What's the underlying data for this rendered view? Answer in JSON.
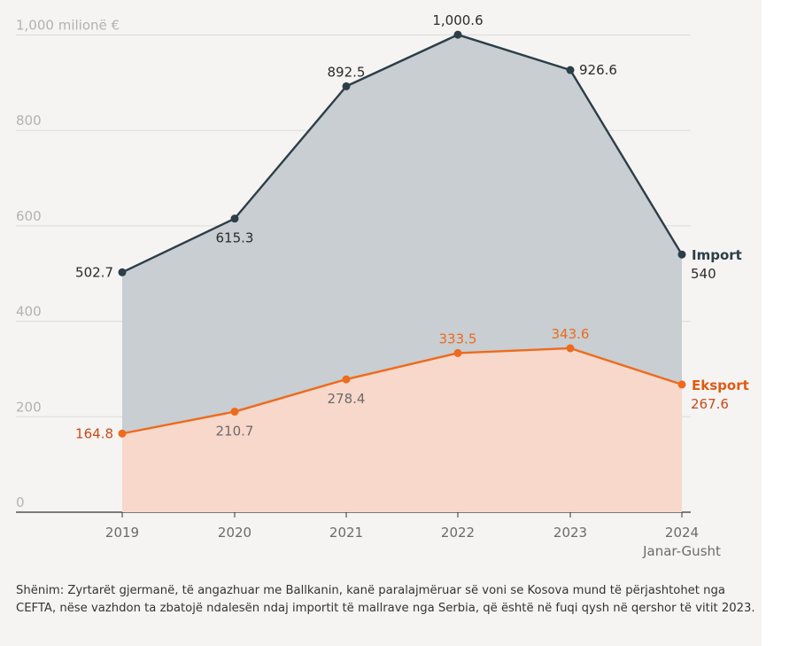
{
  "chart_data": {
    "type": "area",
    "categories": [
      "2019",
      "2020",
      "2021",
      "2022",
      "2023",
      "2024"
    ],
    "category_sublabels": [
      "",
      "",
      "",
      "",
      "",
      "Janar-Gusht"
    ],
    "ylim": [
      0,
      1000
    ],
    "yticks": [
      0,
      200,
      400,
      600,
      800,
      1000
    ],
    "ytick_labels": [
      "0",
      "200",
      "400",
      "600",
      "800",
      "1,000 milionë €"
    ],
    "grid": true,
    "series": [
      {
        "name": "Import",
        "values": [
          502.7,
          615.3,
          892.5,
          1000.6,
          926.6,
          540
        ],
        "labels": [
          "502.7",
          "615.3",
          "892.5",
          "1,000.6",
          "926.6",
          "540"
        ],
        "line_color": "#2c3e48",
        "fill_color": "#c8ced1"
      },
      {
        "name": "Eksport",
        "values": [
          164.8,
          210.7,
          278.4,
          333.5,
          343.6,
          267.6
        ],
        "labels": [
          "164.8",
          "210.7",
          "278.4",
          "333.5",
          "343.6",
          "267.6"
        ],
        "line_color": "#ee6a1c",
        "fill_color": "#f8d8cb"
      }
    ]
  },
  "note": "Shënim: Zyrtarët gjermanë, të angazhuar me Ballkanin, kanë paralajmëruar së voni se Kosova mund të përjashtohet nga CEFTA, nëse vazhdon ta zbatojë ndalesën ndaj importit të mallrave nga Serbia, që është në fuqi qysh në qershor të vitit 2023."
}
